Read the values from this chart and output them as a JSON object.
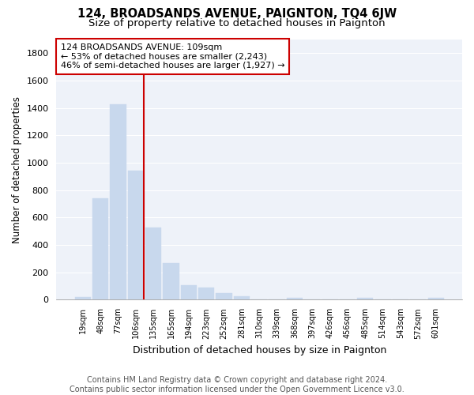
{
  "title": "124, BROADSANDS AVENUE, PAIGNTON, TQ4 6JW",
  "subtitle": "Size of property relative to detached houses in Paignton",
  "xlabel": "Distribution of detached houses by size in Paignton",
  "ylabel": "Number of detached properties",
  "bar_color": "#c8d8ed",
  "bar_edgecolor": "#c8d8ed",
  "background_color": "#eef2f9",
  "grid_color": "#ffffff",
  "categories": [
    "19sqm",
    "48sqm",
    "77sqm",
    "106sqm",
    "135sqm",
    "165sqm",
    "194sqm",
    "223sqm",
    "252sqm",
    "281sqm",
    "310sqm",
    "339sqm",
    "368sqm",
    "397sqm",
    "426sqm",
    "456sqm",
    "485sqm",
    "514sqm",
    "543sqm",
    "572sqm",
    "601sqm"
  ],
  "values": [
    22,
    740,
    1425,
    940,
    530,
    270,
    105,
    90,
    48,
    27,
    0,
    0,
    15,
    0,
    0,
    0,
    12,
    0,
    0,
    0,
    12
  ],
  "ylim": [
    0,
    1900
  ],
  "yticks": [
    0,
    200,
    400,
    600,
    800,
    1000,
    1200,
    1400,
    1600,
    1800
  ],
  "vline_color": "#cc0000",
  "annotation_line1": "124 BROADSANDS AVENUE: 109sqm",
  "annotation_line2": "← 53% of detached houses are smaller (2,243)",
  "annotation_line3": "46% of semi-detached houses are larger (1,927) →",
  "annotation_box_edgecolor": "#cc0000",
  "footer": "Contains HM Land Registry data © Crown copyright and database right 2024.\nContains public sector information licensed under the Open Government Licence v3.0.",
  "title_fontsize": 10.5,
  "subtitle_fontsize": 9.5,
  "xlabel_fontsize": 9,
  "ylabel_fontsize": 8.5,
  "annotation_fontsize": 8,
  "footer_fontsize": 7
}
